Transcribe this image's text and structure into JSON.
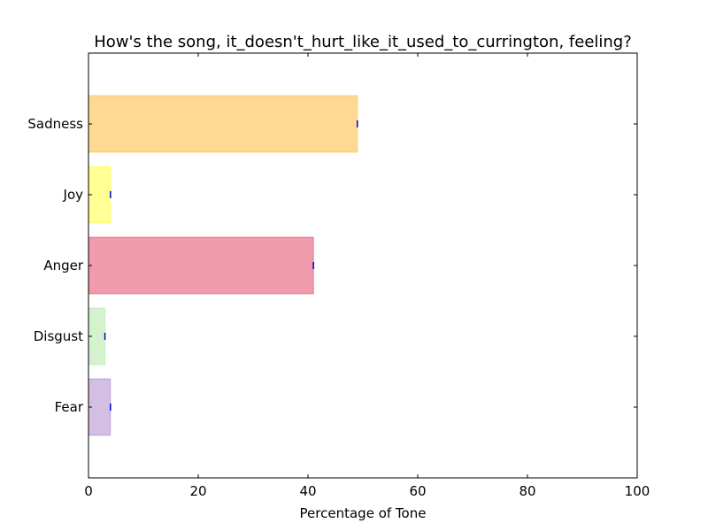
{
  "chart_data": {
    "type": "bar",
    "orientation": "horizontal",
    "title": "How's the song, it_doesn't_hurt_like_it_used_to_currington, feeling?",
    "xlabel": "Percentage of Tone",
    "ylabel": "",
    "xlim": [
      0,
      100
    ],
    "x_ticks": [
      0,
      20,
      40,
      60,
      80,
      100
    ],
    "categories": [
      "Fear",
      "Disgust",
      "Anger",
      "Joy",
      "Sadness"
    ],
    "values": [
      4,
      3,
      41,
      4,
      49
    ],
    "colors": [
      "#9467bd",
      "#98df8a",
      "#dc143c",
      "#ffff00",
      "#ffa500"
    ],
    "grid": false,
    "legend": false
  }
}
